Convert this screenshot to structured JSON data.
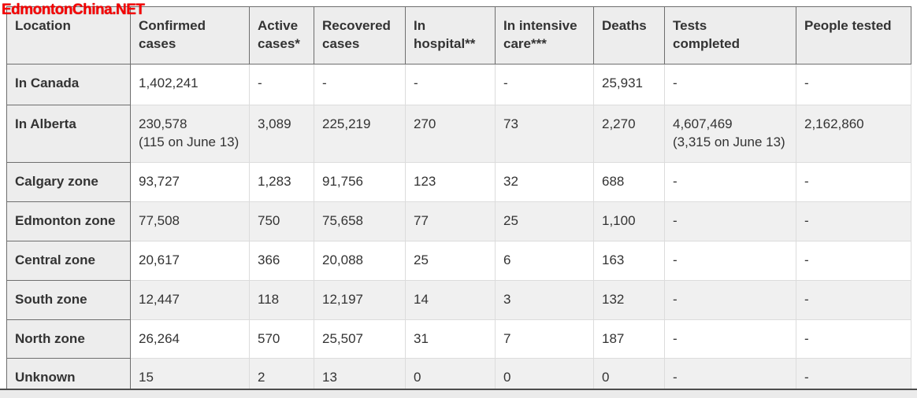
{
  "watermark": "EdmontonChina.NET",
  "colors": {
    "watermark_red": "#f50000",
    "header_bg": "#ededed",
    "alt_row_bg": "#f0f0f0",
    "dark_border": "#6e6e6e",
    "light_border": "#dcdcdc",
    "text": "#333333"
  },
  "table": {
    "columns": [
      "Location",
      "Confirmed\ncases",
      "Active\ncases*",
      "Recovered\ncases",
      "In\nhospital**",
      "In intensive\ncare***",
      "Deaths",
      "Tests\ncompleted",
      "People tested"
    ],
    "rows": [
      {
        "location": "In Canada",
        "values": [
          "1,402,241",
          "-",
          "-",
          "-",
          "-",
          "25,931",
          "-",
          "-"
        ]
      },
      {
        "location": "In Alberta",
        "values": [
          "230,578\n(115 on June 13)",
          "3,089",
          "225,219",
          "270",
          "73",
          "2,270",
          "4,607,469\n(3,315 on June 13)",
          "2,162,860"
        ]
      },
      {
        "location": "Calgary zone",
        "values": [
          "93,727",
          "1,283",
          "91,756",
          "123",
          "32",
          "688",
          "-",
          "-"
        ]
      },
      {
        "location": "Edmonton zone",
        "values": [
          "77,508",
          "750",
          "75,658",
          "77",
          "25",
          "1,100",
          "-",
          "-"
        ]
      },
      {
        "location": "Central zone",
        "values": [
          "20,617",
          "366",
          "20,088",
          "25",
          "6",
          "163",
          "-",
          "-"
        ]
      },
      {
        "location": "South zone",
        "values": [
          "12,447",
          "118",
          "12,197",
          "14",
          "3",
          "132",
          "-",
          "-"
        ]
      },
      {
        "location": "North zone",
        "values": [
          "26,264",
          "570",
          "25,507",
          "31",
          "7",
          "187",
          "-",
          "-"
        ]
      },
      {
        "location": "Unknown",
        "values": [
          "15",
          "2",
          "13",
          "0",
          "0",
          "0",
          "-",
          "-"
        ]
      }
    ]
  }
}
